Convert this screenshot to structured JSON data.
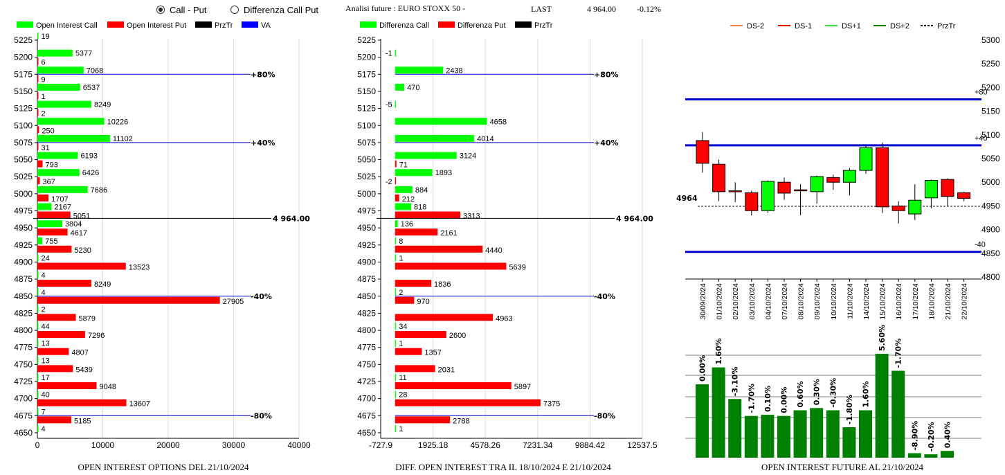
{
  "header": {
    "radio_call_put": "Call - Put",
    "radio_diff": "Differenza Call Put",
    "radio_selected": "call_put",
    "analysis_label": "Analisi future : EURO STOXX 50 -",
    "last_label": "LAST",
    "last_value": "4 964.00",
    "last_change": "-0.12%"
  },
  "colors": {
    "call": "#00ff00",
    "put": "#ff0000",
    "przt": "#000000",
    "va": "#0000ff",
    "bar_future": "#008000",
    "ds_minus2": "#f08050",
    "ds_minus1": "#e00000",
    "ds_plus1": "#40e040",
    "ds_plus2": "#008000",
    "level_line": "#0000cd"
  },
  "chart_data": [
    {
      "id": "oi-options",
      "type": "bar",
      "orientation": "horizontal",
      "title": "OPEN INTEREST OPTIONS DEL 21/10/2024",
      "legend": [
        "Open Interest Call",
        "Open Interest Put",
        "PrzTr",
        "VA"
      ],
      "strikes": [
        "5225",
        "5200",
        "5175",
        "5150",
        "5125",
        "5100",
        "5075",
        "5050",
        "5025",
        "5000",
        "4975",
        "4950",
        "4925",
        "4900",
        "4875",
        "4850",
        "4825",
        "4800",
        "4775",
        "4750",
        "4725",
        "4700",
        "4675",
        "4650"
      ],
      "series": [
        {
          "name": "Open Interest Call",
          "values": [
            19,
            5377,
            7068,
            6537,
            8249,
            10226,
            11102,
            6193,
            6426,
            7686,
            2167,
            3804,
            755,
            24,
            4,
            4,
            2,
            44,
            13,
            13,
            17,
            40,
            7,
            4
          ]
        },
        {
          "name": "Open Interest Put",
          "values": [
            null,
            6,
            9,
            1,
            2,
            250,
            31,
            793,
            367,
            1707,
            5051,
            4617,
            5230,
            13523,
            8249,
            27905,
            5879,
            7296,
            4807,
            5439,
            9048,
            13607,
            5185,
            null
          ]
        }
      ],
      "xlim": [
        0,
        40000
      ],
      "xticks": [
        "0",
        "10000",
        "20000",
        "30000",
        "40000"
      ],
      "levels": [
        {
          "strike": "5175",
          "label": "+80%"
        },
        {
          "strike": "5075",
          "label": "+40%"
        },
        {
          "strike": "4850",
          "label": "-40%"
        },
        {
          "strike": "4675",
          "label": "-80%"
        }
      ],
      "last_price": 4964,
      "last_label": "4 964.00"
    },
    {
      "id": "diff-oi",
      "type": "bar",
      "orientation": "horizontal",
      "title": "DIFF. OPEN INTEREST TRA IL 18/10/2024 E 21/10/2024",
      "legend": [
        "Differenza Call",
        "Differenza Put",
        "PrzTr"
      ],
      "strikes": [
        "5225",
        "5200",
        "5175",
        "5150",
        "5125",
        "5100",
        "5075",
        "5050",
        "5025",
        "5000",
        "4975",
        "4950",
        "4925",
        "4900",
        "4875",
        "4850",
        "4825",
        "4800",
        "4775",
        "4750",
        "4725",
        "4700",
        "4675",
        "4650"
      ],
      "series": [
        {
          "name": "Differenza Call",
          "values": [
            null,
            -1,
            2438,
            470,
            -5,
            4658,
            4014,
            3124,
            1893,
            884,
            818,
            136,
            8,
            1,
            null,
            2,
            null,
            34,
            1,
            null,
            11,
            28,
            null,
            1
          ]
        },
        {
          "name": "Differenza Put",
          "values": [
            null,
            null,
            null,
            null,
            null,
            null,
            null,
            71,
            -2,
            212,
            3313,
            2161,
            4440,
            5639,
            1836,
            970,
            4963,
            2600,
            1357,
            2031,
            5897,
            7375,
            2788,
            null
          ]
        }
      ],
      "xlim": [
        -727.9,
        12537.5
      ],
      "xticks": [
        "-727.9",
        "1925.18",
        "4578.26",
        "7231.34",
        "9884.42",
        "12537.5"
      ],
      "levels": [
        {
          "strike": "5175",
          "label": "+80%"
        },
        {
          "strike": "5075",
          "label": "+40%"
        },
        {
          "strike": "4850",
          "label": "-40%"
        },
        {
          "strike": "4675",
          "label": "-80%"
        }
      ],
      "last_price": 4964,
      "last_label": "4 964.00"
    },
    {
      "id": "candles",
      "type": "candlestick",
      "legend": [
        "DS-2",
        "DS-1",
        "DS+1",
        "DS+2",
        "PrzTr"
      ],
      "dates": [
        "30/09/2024",
        "01/10/2024",
        "02/10/2024",
        "03/10/2024",
        "04/10/2024",
        "07/10/2024",
        "08/10/2024",
        "09/10/2024",
        "10/10/2024",
        "11/10/2024",
        "14/10/2024",
        "15/10/2024",
        "16/10/2024",
        "17/10/2024",
        "18/10/2024",
        "21/10/2024",
        "22/10/2024"
      ],
      "ohlc": [
        [
          5088,
          5106,
          5020,
          5040
        ],
        [
          5038,
          5048,
          4960,
          4980
        ],
        [
          4982,
          5000,
          4958,
          4981
        ],
        [
          4978,
          4982,
          4930,
          4940
        ],
        [
          4940,
          5004,
          4935,
          5002
        ],
        [
          5000,
          5010,
          4963,
          4977
        ],
        [
          4984,
          4996,
          4930,
          4983
        ],
        [
          4980,
          5014,
          4955,
          5012
        ],
        [
          5010,
          5016,
          4984,
          5000
        ],
        [
          5000,
          5030,
          4972,
          5025
        ],
        [
          5025,
          5078,
          5018,
          5073
        ],
        [
          5073,
          5084,
          4935,
          4948
        ],
        [
          4950,
          4960,
          4913,
          4940
        ],
        [
          4933,
          4996,
          4920,
          4962
        ],
        [
          4967,
          5006,
          4945,
          5004
        ],
        [
          5006,
          5008,
          4950,
          4970
        ],
        [
          4978,
          4980,
          4960,
          4966
        ]
      ],
      "ylim": [
        4800,
        5300
      ],
      "yticks": [
        "4800",
        "4850",
        "4900",
        "4950",
        "5000",
        "5050",
        "5100",
        "5150",
        "5200",
        "5250",
        "5300"
      ],
      "levels": [
        {
          "value": 5175,
          "label": "+80"
        },
        {
          "value": 5078,
          "label": "+40"
        },
        {
          "value": 4853,
          "label": "-40"
        }
      ],
      "last_price": 4964,
      "last_label": "4964"
    },
    {
      "id": "oi-future",
      "type": "bar",
      "title": "OPEN INTEREST FUTURE AL 21/10/2024",
      "categories": [
        "30/09/2024",
        "01/10/2024",
        "02/10/2024",
        "03/10/2024",
        "04/10/2024",
        "07/10/2024",
        "08/10/2024",
        "09/10/2024",
        "10/10/2024",
        "11/10/2024",
        "14/10/2024",
        "15/10/2024",
        "16/10/2024",
        "17/10/2024",
        "18/10/2024",
        "21/10/2024",
        "22/10/2024"
      ],
      "labels": [
        "0.00%",
        "1.60%",
        "-3.10%",
        "-1.70%",
        "0.10%",
        "0.00%",
        "0.60%",
        "0.30%",
        "-0.30%",
        "-1.80%",
        "1.60%",
        "5.60%",
        "-1.70%",
        "-8.90%",
        "-0.20%",
        "0.40%",
        ""
      ],
      "values": [
        0.65,
        0.8,
        0.52,
        0.37,
        0.38,
        0.37,
        0.42,
        0.44,
        0.42,
        0.27,
        0.42,
        0.92,
        0.77,
        0.04,
        0.03,
        0.06,
        null
      ],
      "values_note_unit": "fraction"
    }
  ]
}
